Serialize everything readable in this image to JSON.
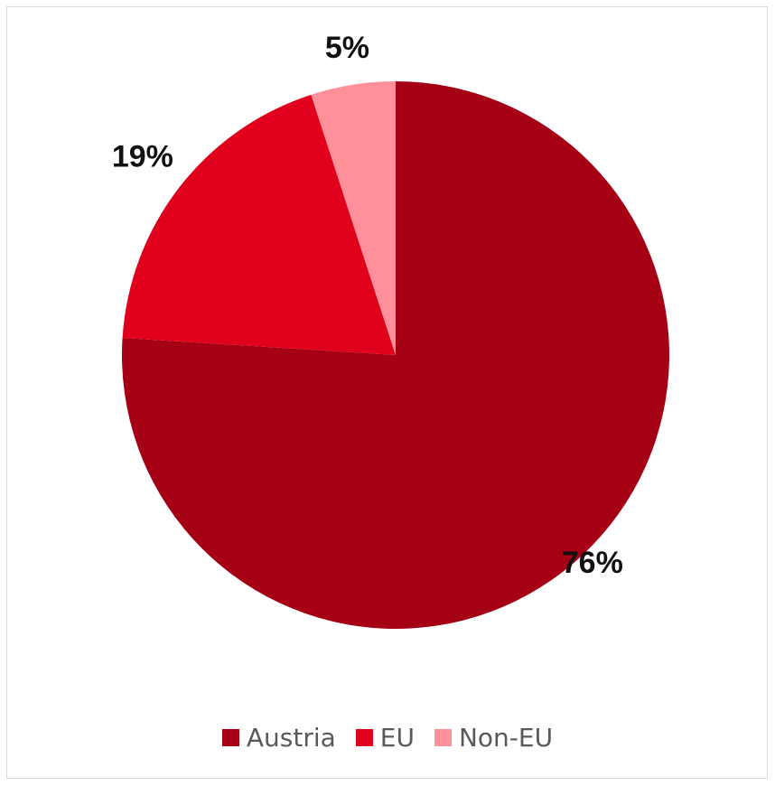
{
  "chart_data": {
    "type": "pie",
    "title": "",
    "categories": [
      "Austria",
      "EU",
      "Non-EU"
    ],
    "values": [
      76,
      19,
      5
    ],
    "labels": [
      "76%",
      "19%",
      "5%"
    ],
    "colors": [
      "#a50014",
      "#e0001b",
      "#ff8f99"
    ],
    "legend": "bottom"
  }
}
